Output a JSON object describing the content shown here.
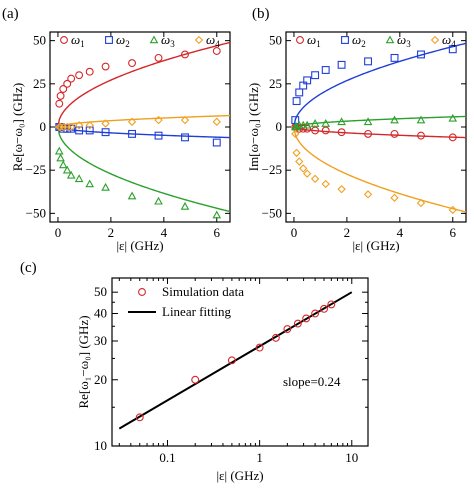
{
  "chart_data": [
    {
      "panel": "(a)",
      "type": "line",
      "ylabel": "Re[ω−ω₀] (GHz)",
      "xlabel": "|ε| (GHz)",
      "xlim": [
        -0.3,
        6.5
      ],
      "ylim": [
        -55,
        55
      ],
      "xticks": [
        0,
        2,
        4,
        6
      ],
      "yticks": [
        -50,
        -25,
        0,
        25,
        50
      ],
      "legend_position": "top",
      "grid": false,
      "series": [
        {
          "name": "ω1",
          "color": "#d62728",
          "marker": "circle",
          "x": [
            0.05,
            0.1,
            0.2,
            0.35,
            0.5,
            0.8,
            1.2,
            1.8,
            2.8,
            3.8,
            4.8,
            6.0
          ],
          "y": [
            13.5,
            18,
            22,
            25,
            28,
            30,
            32,
            35,
            37,
            40,
            42,
            44
          ],
          "fit": "sqrt",
          "fit_coef": 19.2
        },
        {
          "name": "ω2",
          "color": "#1f3fd6",
          "marker": "square",
          "x": [
            0.05,
            0.1,
            0.2,
            0.35,
            0.5,
            0.8,
            1.2,
            1.8,
            2.8,
            3.8,
            4.8,
            6.0
          ],
          "y": [
            0,
            0,
            -1,
            -1,
            -1,
            -2,
            -2,
            -3,
            -4,
            -5,
            -6,
            -9
          ],
          "fit": "sqrt",
          "fit_coef": -2.4
        },
        {
          "name": "ω3",
          "color": "#2ca02c",
          "marker": "triangle",
          "x": [
            0.05,
            0.1,
            0.2,
            0.35,
            0.5,
            0.8,
            1.2,
            1.8,
            2.8,
            3.8,
            4.8,
            6.0
          ],
          "y": [
            -14,
            -18,
            -22,
            -25,
            -28,
            -30,
            -33,
            -35,
            -40,
            -43,
            -46,
            -51
          ],
          "fit": "sqrt",
          "fit_coef": -19.2
        },
        {
          "name": "ω4",
          "color": "#f0a020",
          "marker": "diamond",
          "x": [
            0.05,
            0.1,
            0.2,
            0.35,
            0.5,
            0.8,
            1.2,
            1.8,
            2.8,
            3.8,
            4.8,
            6.0
          ],
          "y": [
            0,
            0,
            0,
            0,
            0,
            1,
            1,
            2,
            3,
            4,
            4,
            3
          ],
          "fit": "sqrt",
          "fit_coef": 2.6
        }
      ]
    },
    {
      "panel": "(b)",
      "type": "line",
      "ylabel": "Im[ω−ω₀] (GHz)",
      "xlabel": "|ε| (GHz)",
      "xlim": [
        -0.3,
        6.5
      ],
      "ylim": [
        -55,
        55
      ],
      "xticks": [
        0,
        2,
        4,
        6
      ],
      "yticks": [
        -50,
        -25,
        0,
        25,
        50
      ],
      "legend_position": "top",
      "grid": false,
      "series": [
        {
          "name": "ω1",
          "color": "#d62728",
          "marker": "circle",
          "x": [
            0.05,
            0.1,
            0.2,
            0.35,
            0.5,
            0.8,
            1.2,
            1.8,
            2.8,
            3.8,
            4.8,
            6.0
          ],
          "y": [
            0,
            0,
            -1,
            -1,
            -1,
            -2,
            -2,
            -3,
            -4,
            -4,
            -5,
            -6
          ],
          "fit": "sqrt",
          "fit_coef": -2.4
        },
        {
          "name": "ω2",
          "color": "#1f3fd6",
          "marker": "square",
          "x": [
            0.05,
            0.1,
            0.2,
            0.35,
            0.5,
            0.8,
            1.2,
            1.8,
            2.8,
            3.8,
            4.8,
            6.0
          ],
          "y": [
            4,
            15,
            20,
            24,
            27,
            30,
            33,
            36,
            38,
            40,
            42,
            45
          ],
          "fit": "sqrt",
          "fit_coef": 19.0
        },
        {
          "name": "ω3",
          "color": "#2ca02c",
          "marker": "triangle",
          "x": [
            0.05,
            0.1,
            0.2,
            0.35,
            0.5,
            0.8,
            1.2,
            1.8,
            2.8,
            3.8,
            4.8,
            6.0
          ],
          "y": [
            0,
            0,
            1,
            1,
            1,
            2,
            2,
            3,
            3,
            4,
            4,
            5
          ],
          "fit": "sqrt",
          "fit_coef": 2.4
        },
        {
          "name": "ω4",
          "color": "#f0a020",
          "marker": "diamond",
          "x": [
            0.05,
            0.1,
            0.2,
            0.35,
            0.5,
            0.8,
            1.2,
            1.8,
            2.8,
            3.8,
            4.8,
            6.0
          ],
          "y": [
            -4,
            -15,
            -20,
            -24,
            -27,
            -30,
            -33,
            -36,
            -39,
            -41,
            -44,
            -48
          ],
          "fit": "sqrt",
          "fit_coef": -19.3
        }
      ]
    },
    {
      "panel": "(c)",
      "type": "scatter",
      "ylabel": "Re[ω₁−ω₀] (GHz)",
      "xlabel": "|ε| (GHz)",
      "xscale": "log",
      "yscale": "log",
      "xlim": [
        0.025,
        15
      ],
      "ylim": [
        10,
        58
      ],
      "xticks": [
        0.1,
        1,
        10
      ],
      "xtick_labels": [
        "0.1",
        "1",
        "10"
      ],
      "yticks": [
        10,
        20,
        30,
        40,
        50
      ],
      "ytick_labels": [
        "10",
        "20",
        "30",
        "40",
        "50"
      ],
      "legend_position": "top-left",
      "grid": false,
      "annotation": "slope=0.24",
      "series": [
        {
          "name": "Simulation data",
          "color": "#d62728",
          "marker": "circle",
          "x": [
            0.05,
            0.2,
            0.5,
            1.0,
            1.5,
            2.0,
            2.6,
            3.2,
            4.0,
            5.0,
            6.0
          ],
          "y": [
            13.5,
            20,
            24.5,
            28,
            31,
            34,
            36,
            38,
            40,
            42,
            44
          ]
        },
        {
          "name": "Linear fitting",
          "color": "#000000",
          "marker": "line",
          "x": [
            0.03,
            10
          ],
          "y": [
            12,
            50
          ]
        }
      ]
    }
  ]
}
